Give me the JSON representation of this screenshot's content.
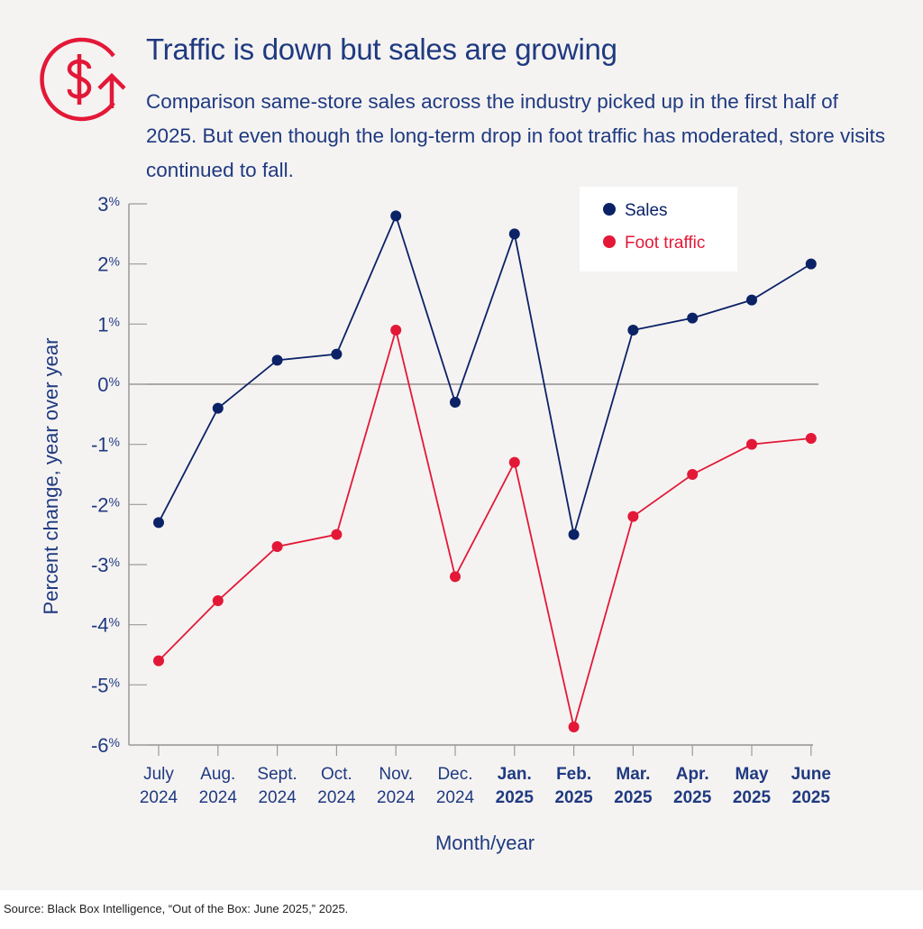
{
  "header": {
    "icon": "dollar-circle-up-arrow-icon",
    "title": "Traffic is down but sales are growing",
    "subtitle": "Comparison same-store sales across the industry picked up in the first half of 2025. But even though the long-term drop in foot traffic has moderated, store visits continued to fall."
  },
  "colors": {
    "sales": "#0b2266",
    "foot_traffic": "#e31837",
    "text": "#1f3a80",
    "axis": "#808080"
  },
  "chart_data": {
    "type": "line",
    "title": "Traffic is down but sales are growing",
    "xlabel": "Month/year",
    "ylabel": "Percent change, year over year",
    "ylim": [
      -6,
      3
    ],
    "yticks": [
      3,
      2,
      1,
      0,
      -1,
      -2,
      -3,
      -4,
      -5,
      -6
    ],
    "ytick_labels": [
      "3%",
      "2%",
      "1%",
      "0%",
      "-1%",
      "-2%",
      "-3%",
      "-4%",
      "-5%",
      "-6%"
    ],
    "categories": [
      {
        "month": "July",
        "year": "2024",
        "bold": false
      },
      {
        "month": "Aug.",
        "year": "2024",
        "bold": false
      },
      {
        "month": "Sept.",
        "year": "2024",
        "bold": false
      },
      {
        "month": "Oct.",
        "year": "2024",
        "bold": false
      },
      {
        "month": "Nov.",
        "year": "2024",
        "bold": false
      },
      {
        "month": "Dec.",
        "year": "2024",
        "bold": false
      },
      {
        "month": "Jan.",
        "year": "2025",
        "bold": true
      },
      {
        "month": "Feb.",
        "year": "2025",
        "bold": true
      },
      {
        "month": "Mar.",
        "year": "2025",
        "bold": true
      },
      {
        "month": "Apr.",
        "year": "2025",
        "bold": true
      },
      {
        "month": "May",
        "year": "2025",
        "bold": true
      },
      {
        "month": "June",
        "year": "2025",
        "bold": true
      }
    ],
    "series": [
      {
        "name": "Sales",
        "color": "#0b2266",
        "values": [
          -2.3,
          -0.4,
          0.4,
          0.5,
          2.8,
          -0.3,
          2.5,
          -2.5,
          0.9,
          1.1,
          1.4,
          2.0
        ]
      },
      {
        "name": "Foot traffic",
        "color": "#e31837",
        "values": [
          -4.6,
          -3.6,
          -2.7,
          -2.5,
          0.9,
          -3.2,
          -1.3,
          -5.7,
          -2.2,
          -1.5,
          -1.0,
          -0.9
        ]
      }
    ],
    "legend": {
      "placement": "top-right",
      "entries": [
        "Sales",
        "Foot traffic"
      ]
    },
    "grid": false,
    "zero_line": true
  },
  "footer": {
    "source": "Source: Black Box Intelligence, “Out of the Box: June 2025,” 2025."
  }
}
